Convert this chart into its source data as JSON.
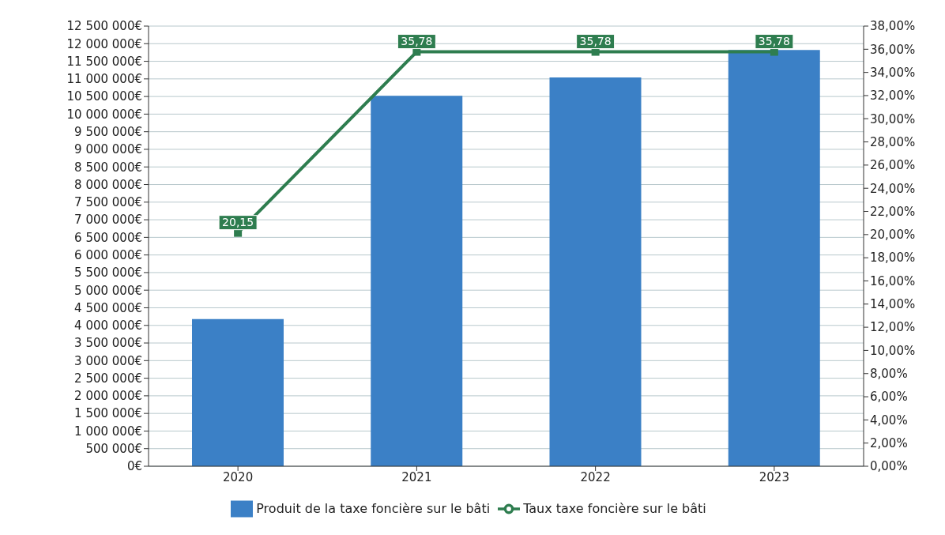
{
  "chart_data": {
    "type": "bar",
    "categories": [
      "2020",
      "2021",
      "2022",
      "2023"
    ],
    "series": [
      {
        "name": "Produit de la taxe foncière sur le bâti",
        "color": "#3b80c6",
        "values": [
          4180000,
          10520000,
          11040000,
          11820000
        ]
      },
      {
        "name": "Taux taxe foncière sur le bâti",
        "type": "line",
        "axis": "y2",
        "color": "#2e7d4f",
        "marker": "square",
        "values": [
          20.15,
          35.78,
          35.78,
          35.78
        ],
        "value_labels": [
          "20,15",
          "35,78",
          "35,78",
          "35,78"
        ]
      }
    ],
    "ylim": [
      0,
      12500000
    ],
    "yticks": [
      {
        "value": 0,
        "label": "0€"
      },
      {
        "value": 500000,
        "label": "500 000€"
      },
      {
        "value": 1000000,
        "label": "1 000 000€"
      },
      {
        "value": 1500000,
        "label": "1 500 000€"
      },
      {
        "value": 2000000,
        "label": "2 000 000€"
      },
      {
        "value": 2500000,
        "label": "2 500 000€"
      },
      {
        "value": 3000000,
        "label": "3 000 000€"
      },
      {
        "value": 3500000,
        "label": "3 500 000€"
      },
      {
        "value": 4000000,
        "label": "4 000 000€"
      },
      {
        "value": 4500000,
        "label": "4 500 000€"
      },
      {
        "value": 5000000,
        "label": "5 000 000€"
      },
      {
        "value": 5500000,
        "label": "5 500 000€"
      },
      {
        "value": 6000000,
        "label": "6 000 000€"
      },
      {
        "value": 6500000,
        "label": "6 500 000€"
      },
      {
        "value": 7000000,
        "label": "7 000 000€"
      },
      {
        "value": 7500000,
        "label": "7 500 000€"
      },
      {
        "value": 8000000,
        "label": "8 000 000€"
      },
      {
        "value": 8500000,
        "label": "8 500 000€"
      },
      {
        "value": 9000000,
        "label": "9 000 000€"
      },
      {
        "value": 9500000,
        "label": "9 500 000€"
      },
      {
        "value": 10000000,
        "label": "10 000 000€"
      },
      {
        "value": 10500000,
        "label": "10 500 000€"
      },
      {
        "value": 11000000,
        "label": "11 000 000€"
      },
      {
        "value": 11500000,
        "label": "11 500 000€"
      },
      {
        "value": 12000000,
        "label": "12 000 000€"
      },
      {
        "value": 12500000,
        "label": "12 500 000€"
      }
    ],
    "y2lim": [
      0,
      38
    ],
    "y2ticks": [
      {
        "value": 0,
        "label": "0,00%"
      },
      {
        "value": 2,
        "label": "2,00%"
      },
      {
        "value": 4,
        "label": "4,00%"
      },
      {
        "value": 6,
        "label": "6,00%"
      },
      {
        "value": 8,
        "label": "8,00%"
      },
      {
        "value": 10,
        "label": "10,00%"
      },
      {
        "value": 12,
        "label": "12,00%"
      },
      {
        "value": 14,
        "label": "14,00%"
      },
      {
        "value": 16,
        "label": "16,00%"
      },
      {
        "value": 18,
        "label": "18,00%"
      },
      {
        "value": 20,
        "label": "20,00%"
      },
      {
        "value": 22,
        "label": "22,00%"
      },
      {
        "value": 24,
        "label": "24,00%"
      },
      {
        "value": 26,
        "label": "26,00%"
      },
      {
        "value": 28,
        "label": "28,00%"
      },
      {
        "value": 30,
        "label": "30,00%"
      },
      {
        "value": 32,
        "label": "32,00%"
      },
      {
        "value": 34,
        "label": "34,00%"
      },
      {
        "value": 36,
        "label": "36,00%"
      },
      {
        "value": 38,
        "label": "38,00%"
      }
    ],
    "grid": "y",
    "legend": "bottom"
  }
}
